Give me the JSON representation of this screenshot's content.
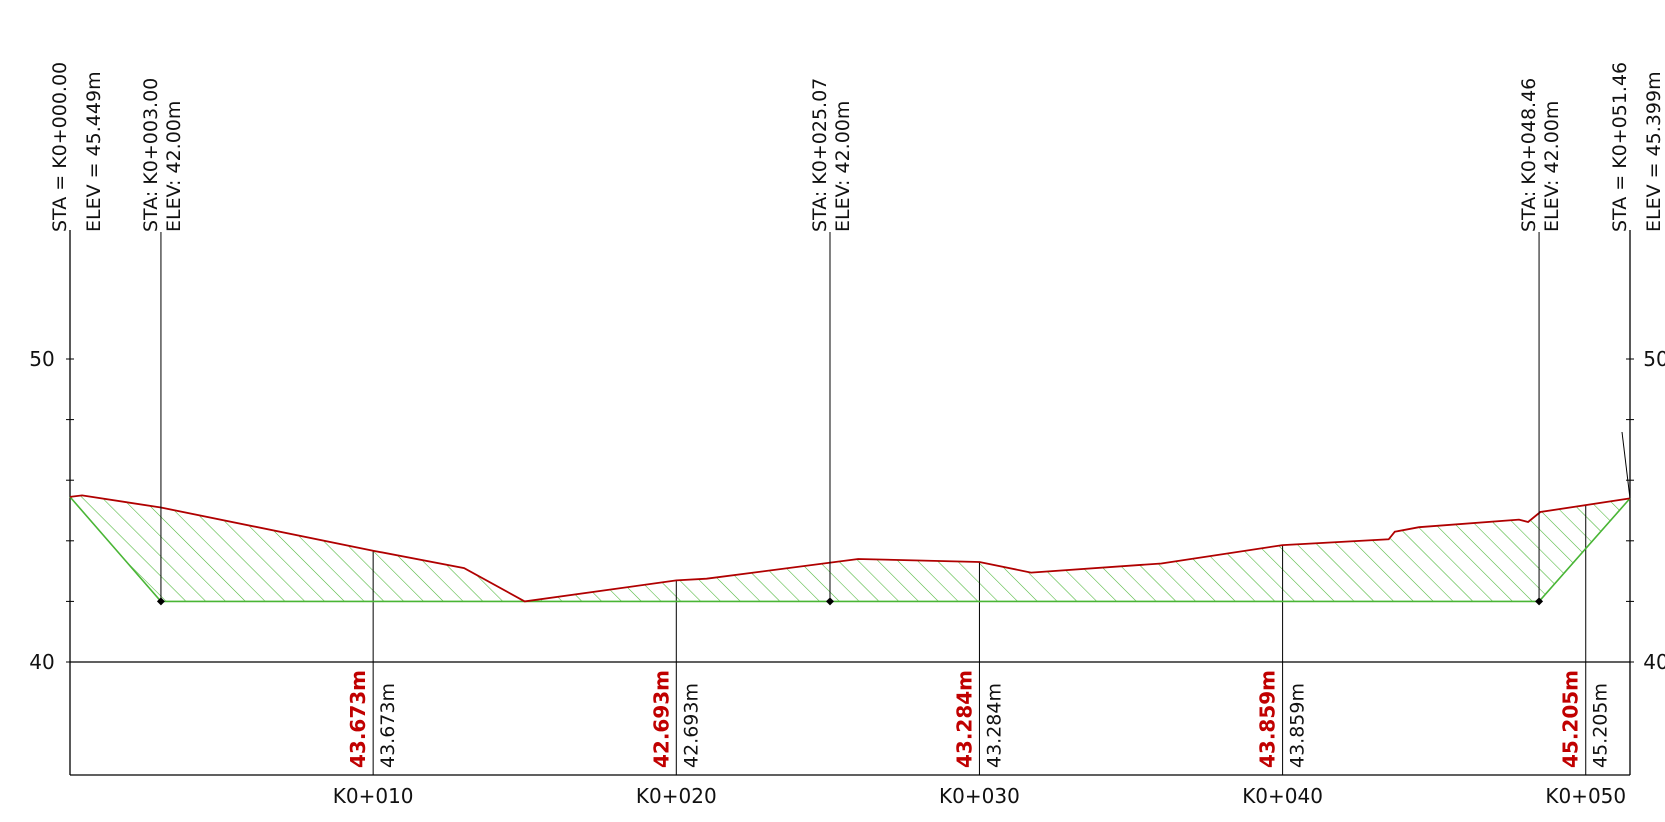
{
  "colors": {
    "profile_line": "#b00000",
    "hatch": "#49b535",
    "frame": "#000000",
    "red_label": "#c00000"
  },
  "axis": {
    "ylim": [
      36.3,
      59.0
    ],
    "xlim": [
      0.0,
      51.46
    ],
    "y_ticks": [
      {
        "value": 50,
        "label": "50"
      },
      {
        "value": 40,
        "label": "40"
      }
    ],
    "x_ticks": [
      {
        "value": 10,
        "label": "K0+010"
      },
      {
        "value": 20,
        "label": "K0+020"
      },
      {
        "value": 30,
        "label": "K0+030"
      },
      {
        "value": 40,
        "label": "K0+040"
      },
      {
        "value": 50,
        "label": "K0+050"
      }
    ]
  },
  "end_stations": [
    {
      "station": 0.0,
      "sta_label": "STA  =  K0+000.00",
      "elev_label": "ELEV  =    45.449m"
    },
    {
      "station": 51.46,
      "sta_label": "STA  =  K0+051.46",
      "elev_label": "ELEV  =    45.399m"
    }
  ],
  "design_points": [
    {
      "station": 3.0,
      "elevation": 42.0,
      "sta_label": "STA: K0+003.00",
      "elev_label": "ELEV: 42.00m"
    },
    {
      "station": 25.07,
      "elevation": 42.0,
      "sta_label": "STA: K0+025.07",
      "elev_label": "ELEV: 42.00m"
    },
    {
      "station": 48.46,
      "elevation": 42.0,
      "sta_label": "STA: K0+048.46",
      "elev_label": "ELEV: 42.00m"
    }
  ],
  "ground_profile": [
    [
      0.0,
      45.449
    ],
    [
      0.4,
      45.5
    ],
    [
      3.0,
      45.1
    ],
    [
      10.0,
      43.673
    ],
    [
      13.0,
      43.1
    ],
    [
      15.0,
      42.0
    ],
    [
      20.0,
      42.693
    ],
    [
      21.0,
      42.75
    ],
    [
      26.0,
      43.4
    ],
    [
      30.0,
      43.3
    ],
    [
      31.7,
      42.95
    ],
    [
      36.0,
      43.25
    ],
    [
      40.0,
      43.859
    ],
    [
      43.5,
      44.05
    ],
    [
      43.7,
      44.3
    ],
    [
      44.5,
      44.45
    ],
    [
      47.8,
      44.7
    ],
    [
      48.1,
      44.62
    ],
    [
      48.5,
      44.95
    ],
    [
      51.46,
      45.399
    ]
  ],
  "design_profile": [
    [
      0.0,
      45.449
    ],
    [
      3.0,
      42.0
    ],
    [
      25.07,
      42.0
    ],
    [
      48.46,
      42.0
    ],
    [
      51.46,
      45.399
    ]
  ],
  "elevation_labels": [
    {
      "station": 10,
      "design": "43.673m",
      "existing": "43.673m"
    },
    {
      "station": 20,
      "design": "42.693m",
      "existing": "42.693m"
    },
    {
      "station": 30,
      "design": "43.284m",
      "existing": "43.284m"
    },
    {
      "station": 40,
      "design": "43.859m",
      "existing": "43.859m"
    },
    {
      "station": 50,
      "design": "45.205m",
      "existing": "45.205m"
    }
  ],
  "chart_data": {
    "type": "line",
    "title": "",
    "xlabel": "",
    "ylabel": "",
    "ylim": [
      36.3,
      59.0
    ],
    "series": [
      {
        "values": [
          [
            0.0,
            45.449
          ],
          [
            3.0,
            45.1
          ],
          [
            10.0,
            43.673
          ],
          [
            13.0,
            43.1
          ],
          [
            15.0,
            42.0
          ],
          [
            20.0,
            42.693
          ],
          [
            26.0,
            43.4
          ],
          [
            30.0,
            43.3
          ],
          [
            31.7,
            42.95
          ],
          [
            36.0,
            43.25
          ],
          [
            40.0,
            43.859
          ],
          [
            43.5,
            44.05
          ],
          [
            47.8,
            44.7
          ],
          [
            48.5,
            44.95
          ],
          [
            51.46,
            45.399
          ]
        ]
      },
      {
        "values": [
          [
            0.0,
            45.449
          ],
          [
            3.0,
            42.0
          ],
          [
            25.07,
            42.0
          ],
          [
            48.46,
            42.0
          ],
          [
            51.46,
            45.399
          ]
        ]
      }
    ]
  }
}
